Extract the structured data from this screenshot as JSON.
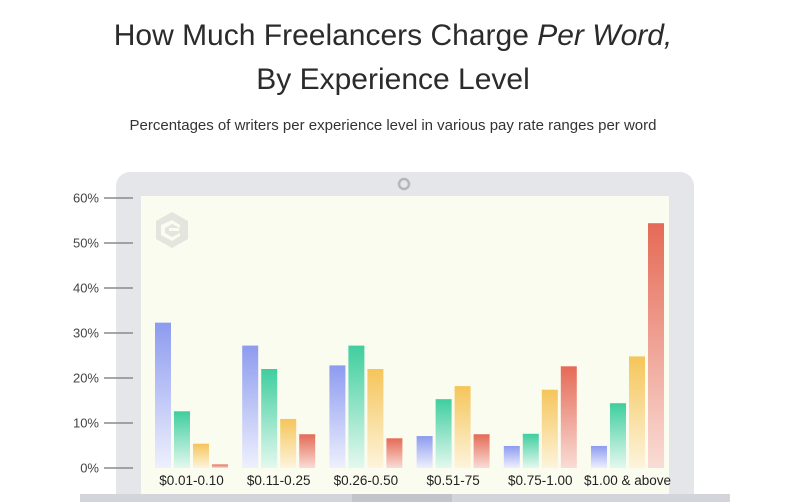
{
  "title_line1": "How Much Freelancers Charge ",
  "title_line1_italic": "Per Word,",
  "title_line2": "By Experience Level",
  "subtitle": "Percentages of writers per experience level in various pay rate ranges per word",
  "logo_icon": "contently-c-logo-icon",
  "colors": {
    "frame": "#e5e6ea",
    "screen": "#fbfcf0",
    "s1_top": "#8d9bef",
    "s1_bottom": "#eef0fd",
    "s2_top": "#3fce9e",
    "s2_bottom": "#e4f8ef",
    "s3_top": "#f5c55a",
    "s3_bottom": "#fdf4dc",
    "s4_top": "#e56a56",
    "s4_bottom": "#f9dcd6"
  },
  "chart_data": {
    "type": "bar",
    "title": "How Much Freelancers Charge Per Word, By Experience Level",
    "subtitle": "Percentages of writers per experience level in various pay rate ranges per word",
    "categories": [
      "$0.01-0.10",
      "$0.11-0.25",
      "$0.26-0.50",
      "$0.51-75",
      "$0.75-1.00",
      "$1.00 & above"
    ],
    "y_ticks": [
      "0%",
      "10%",
      "20%",
      "30%",
      "40%",
      "50%",
      "60%"
    ],
    "ylim": [
      0,
      60
    ],
    "grid": false,
    "series": [
      {
        "values": [
          32.3,
          27.2,
          22.8,
          7.1,
          4.9,
          4.9
        ]
      },
      {
        "values": [
          12.6,
          22.0,
          27.2,
          15.3,
          7.6,
          14.4
        ]
      },
      {
        "values": [
          5.4,
          10.9,
          22.0,
          18.2,
          17.4,
          24.8
        ]
      },
      {
        "values": [
          0.8,
          7.5,
          6.6,
          7.5,
          22.6,
          54.4
        ]
      }
    ]
  }
}
